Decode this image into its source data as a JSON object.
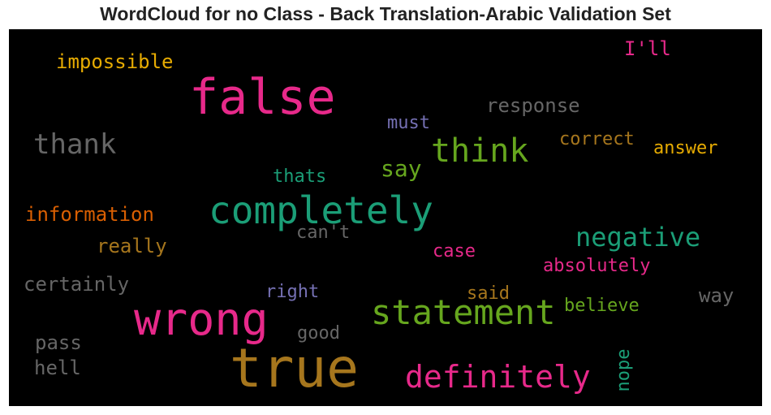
{
  "title": "WordCloud for no Class - Back Translation-Arabic Validation Set",
  "colors": {
    "pink": "#e7298a",
    "gold": "#a6761d",
    "mustard": "#e6ab02",
    "green_teal": "#1b9e77",
    "olive_green": "#66a61e",
    "purple": "#7570b3",
    "orange": "#d95f02",
    "gray": "#666666"
  },
  "words": [
    {
      "text": "false",
      "color": "#e7298a"
    },
    {
      "text": "true",
      "color": "#a6761d"
    },
    {
      "text": "wrong",
      "color": "#e7298a"
    },
    {
      "text": "completely",
      "color": "#1b9e77"
    },
    {
      "text": "statement",
      "color": "#66a61e"
    },
    {
      "text": "definitely",
      "color": "#e7298a"
    },
    {
      "text": "think",
      "color": "#66a61e"
    },
    {
      "text": "negative",
      "color": "#1b9e77"
    },
    {
      "text": "thank",
      "color": "#666666"
    },
    {
      "text": "say",
      "color": "#66a61e"
    },
    {
      "text": "impossible",
      "color": "#e6ab02"
    },
    {
      "text": "I'll",
      "color": "#e7298a"
    },
    {
      "text": "response",
      "color": "#666666"
    },
    {
      "text": "must",
      "color": "#7570b3"
    },
    {
      "text": "correct",
      "color": "#a6761d"
    },
    {
      "text": "answer",
      "color": "#e6ab02"
    },
    {
      "text": "thats",
      "color": "#1b9e77"
    },
    {
      "text": "information",
      "color": "#d95f02"
    },
    {
      "text": "can't",
      "color": "#666666"
    },
    {
      "text": "really",
      "color": "#a6761d"
    },
    {
      "text": "case",
      "color": "#e7298a"
    },
    {
      "text": "absolutely",
      "color": "#e7298a"
    },
    {
      "text": "certainly",
      "color": "#666666"
    },
    {
      "text": "right",
      "color": "#7570b3"
    },
    {
      "text": "said",
      "color": "#a6761d"
    },
    {
      "text": "way",
      "color": "#666666"
    },
    {
      "text": "believe",
      "color": "#66a61e"
    },
    {
      "text": "good",
      "color": "#666666"
    },
    {
      "text": "pass",
      "color": "#666666"
    },
    {
      "text": "hell",
      "color": "#666666"
    },
    {
      "text": "nope",
      "color": "#1b9e77"
    }
  ]
}
